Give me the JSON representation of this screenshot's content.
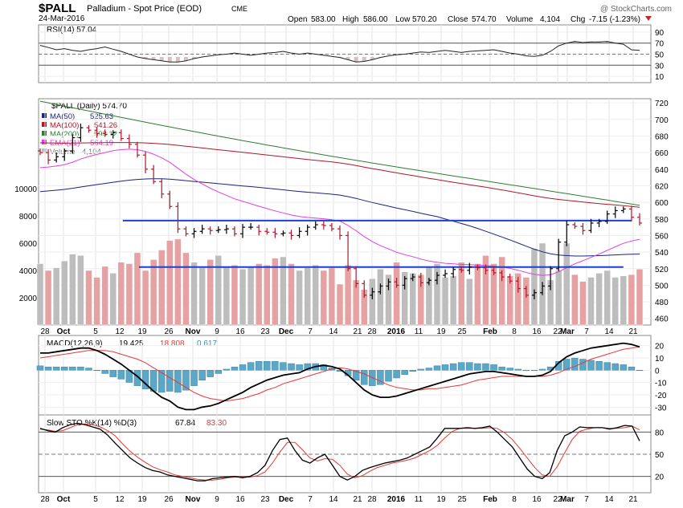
{
  "header": {
    "symbol": "$PALL",
    "name": "Palladium - Spot Price (EOD)",
    "exchange": "CME",
    "date": "24-Mar-2016",
    "watermark": "@ StockCharts.com",
    "open_label": "Open",
    "open": "583.00",
    "high_label": "High",
    "high": "586.00",
    "low_label": "Low",
    "low": "570.20",
    "close_label": "Close",
    "close": "574.70",
    "volume_label": "Volume",
    "volume": "4,104",
    "chg_label": "Chg",
    "chg": "-7.15 (-1.23%)"
  },
  "colors": {
    "ma50": "#1a237e",
    "ma100": "#b0172a",
    "ma200": "#2e7d32",
    "ema21": "#e040e0",
    "rsi": "#222222",
    "macd": "#000000",
    "signal": "#e53935",
    "hist": "#5aa7c8",
    "stoK": "#000000",
    "stoD": "#e53935",
    "hline": "#1f3fd1",
    "vol_up": "#bdbdbd",
    "vol_down": "#e6a2a2"
  },
  "chart_data": [
    {
      "type": "line",
      "title": "RSI(14) 57.04",
      "y_ticks": [
        "90",
        "70",
        "50",
        "30",
        "10"
      ],
      "ylim": [
        0,
        100
      ],
      "levels": [
        70,
        30
      ],
      "series": [
        {
          "name": "RSI(14)",
          "values": [
            66,
            62,
            58,
            60,
            57,
            55,
            58,
            60,
            63,
            59,
            55,
            50,
            45,
            42,
            40,
            38,
            36,
            36,
            38,
            42,
            45,
            47,
            49,
            50,
            52,
            50,
            48,
            50,
            52,
            53,
            55,
            52,
            50,
            52,
            50,
            48,
            46,
            44,
            40,
            36,
            37,
            40,
            44,
            47,
            49,
            50,
            52,
            54,
            53,
            55,
            57,
            55,
            53,
            55,
            56,
            57,
            58,
            55,
            52,
            50,
            47,
            46,
            48,
            55,
            65,
            70,
            73,
            71,
            72,
            72,
            73,
            70,
            68,
            58,
            57
          ]
        }
      ]
    },
    {
      "type": "candlestick",
      "title": "$PALL (Daily) 574.70",
      "y_ticks": [
        "720",
        "700",
        "680",
        "660",
        "640",
        "620",
        "600",
        "580",
        "560",
        "540",
        "520",
        "500",
        "480",
        "460"
      ],
      "vol_ticks": [
        "10000",
        "8000",
        "6000",
        "4000",
        "2000"
      ],
      "ylim": [
        452,
        725
      ],
      "x_ticks": [
        "28",
        "Oct",
        "5",
        "12",
        "19",
        "26",
        "Nov",
        "9",
        "16",
        "23",
        "Dec",
        "7",
        "14",
        "21",
        "28",
        "2016",
        "11",
        "19",
        "25",
        "Feb",
        "8",
        "16",
        "22",
        "Mar",
        "7",
        "14",
        "21"
      ],
      "horizontal_lines": [
        578,
        522
      ],
      "close": [
        660,
        651,
        655,
        662,
        678,
        690,
        687,
        683,
        682,
        684,
        677,
        670,
        657,
        640,
        625,
        610,
        595,
        568,
        562,
        565,
        568,
        566,
        567,
        568,
        562,
        570,
        570,
        565,
        564,
        562,
        563,
        560,
        565,
        570,
        573,
        572,
        568,
        560,
        520,
        502,
        488,
        492,
        499,
        504,
        500,
        508,
        510,
        503,
        506,
        512,
        514,
        519,
        518,
        522,
        521,
        518,
        515,
        510,
        505,
        496,
        488,
        491,
        499,
        520,
        552,
        573,
        571,
        566,
        575,
        577,
        586,
        590,
        592,
        582,
        575
      ],
      "volume": [
        4500,
        4000,
        4200,
        4700,
        5200,
        5100,
        4000,
        3500,
        4300,
        3800,
        4600,
        4500,
        5300,
        4000,
        4800,
        5500,
        6200,
        6300,
        5300,
        4600,
        4200,
        4800,
        5100,
        4300,
        4400,
        4100,
        4300,
        4500,
        4400,
        4900,
        5000,
        4500,
        4000,
        4200,
        4400,
        4000,
        4200,
        3000,
        4400,
        3300,
        2600,
        3400,
        4100,
        3700,
        4600,
        3900,
        3800,
        3700,
        4300,
        4500,
        3500,
        3600,
        4600,
        3400,
        4500,
        5100,
        4500,
        5000,
        3600,
        3800,
        3500,
        5600,
        6000,
        3300,
        4000,
        6000,
        3700,
        3200,
        3500,
        3800,
        4000,
        3500,
        3600,
        3700,
        4100
      ],
      "series": [
        {
          "name": "MA(50)",
          "value": "525.63"
        },
        {
          "name": "MA(100)",
          "value": "541.26"
        },
        {
          "name": "MA(200)",
          "value": "593.12"
        },
        {
          "name": "EMA(21)",
          "value": "564.19"
        },
        {
          "name": "Volume",
          "value": "4,104"
        }
      ]
    },
    {
      "type": "line",
      "title": "MACD(12,26,9)",
      "macd_value": "19.425",
      "signal_value": "18.808",
      "hist_value": "0.617",
      "y_ticks": [
        "20",
        "10",
        "0",
        "-10",
        "-20",
        "-30"
      ],
      "ylim": [
        -35,
        25
      ],
      "macd": [
        14,
        14,
        15,
        16,
        17,
        18,
        18,
        16,
        13,
        9,
        5,
        0,
        -5,
        -11,
        -17,
        -22,
        -25,
        -30,
        -32,
        -32,
        -30,
        -29,
        -27,
        -24,
        -21,
        -18,
        -14,
        -11,
        -8,
        -6,
        -4,
        -3,
        -2,
        1,
        3,
        4,
        3,
        1,
        -4,
        -10,
        -16,
        -20,
        -22,
        -22,
        -21,
        -19,
        -17,
        -15,
        -13,
        -11,
        -9,
        -7,
        -5,
        -3,
        -2,
        -1,
        -1,
        -2,
        -3,
        -4,
        -5,
        -5,
        -4,
        -1,
        6,
        11,
        14,
        16,
        18,
        19,
        20,
        21,
        22,
        21,
        19
      ],
      "signal": [
        10,
        11,
        12,
        13,
        14,
        15,
        16,
        16,
        16,
        15,
        13,
        11,
        9,
        6,
        2,
        -2,
        -6,
        -10,
        -14,
        -18,
        -21,
        -23,
        -24,
        -25,
        -24,
        -23,
        -21,
        -19,
        -16,
        -14,
        -11,
        -9,
        -7,
        -5,
        -3,
        -1,
        1,
        2,
        1,
        -1,
        -3,
        -6,
        -9,
        -12,
        -14,
        -15,
        -16,
        -16,
        -15,
        -15,
        -14,
        -13,
        -12,
        -10,
        -8,
        -7,
        -6,
        -5,
        -5,
        -5,
        -5,
        -5,
        -5,
        -4,
        -2,
        1,
        3,
        6,
        9,
        11,
        13,
        15,
        17,
        18,
        19
      ]
    },
    {
      "type": "line",
      "title": "Slow STO %K(14) %D(3)",
      "k_value": "67.84",
      "d_value": "83.30",
      "y_ticks": [
        "80",
        "50",
        "20"
      ],
      "ylim": [
        0,
        100
      ],
      "levels": [
        80,
        20
      ],
      "k": [
        85,
        82,
        80,
        86,
        90,
        92,
        90,
        87,
        84,
        76,
        65,
        55,
        45,
        38,
        32,
        28,
        26,
        22,
        20,
        18,
        16,
        14,
        14,
        17,
        18,
        19,
        20,
        18,
        20,
        25,
        35,
        55,
        70,
        72,
        55,
        42,
        38,
        45,
        50,
        35,
        20,
        15,
        20,
        28,
        32,
        35,
        38,
        40,
        42,
        45,
        50,
        55,
        60,
        72,
        85,
        85,
        85,
        86,
        85,
        86,
        88,
        80,
        70,
        60,
        45,
        30,
        20,
        17,
        25,
        55,
        75,
        80,
        87,
        86,
        86,
        86,
        84,
        86,
        89,
        88,
        68
      ],
      "d": [
        84,
        83,
        81,
        82,
        86,
        90,
        91,
        90,
        87,
        82,
        75,
        64,
        54,
        46,
        39,
        33,
        29,
        26,
        22,
        20,
        18,
        16,
        15,
        15,
        16,
        18,
        19,
        19,
        19,
        21,
        26,
        38,
        53,
        66,
        66,
        56,
        45,
        41,
        44,
        43,
        35,
        23,
        18,
        21,
        27,
        32,
        35,
        38,
        40,
        42,
        45,
        50,
        55,
        62,
        72,
        81,
        85,
        85,
        85,
        85,
        86,
        85,
        79,
        70,
        58,
        45,
        32,
        22,
        20,
        33,
        52,
        70,
        81,
        84,
        86,
        86,
        85,
        85,
        86,
        88,
        83
      ]
    }
  ]
}
